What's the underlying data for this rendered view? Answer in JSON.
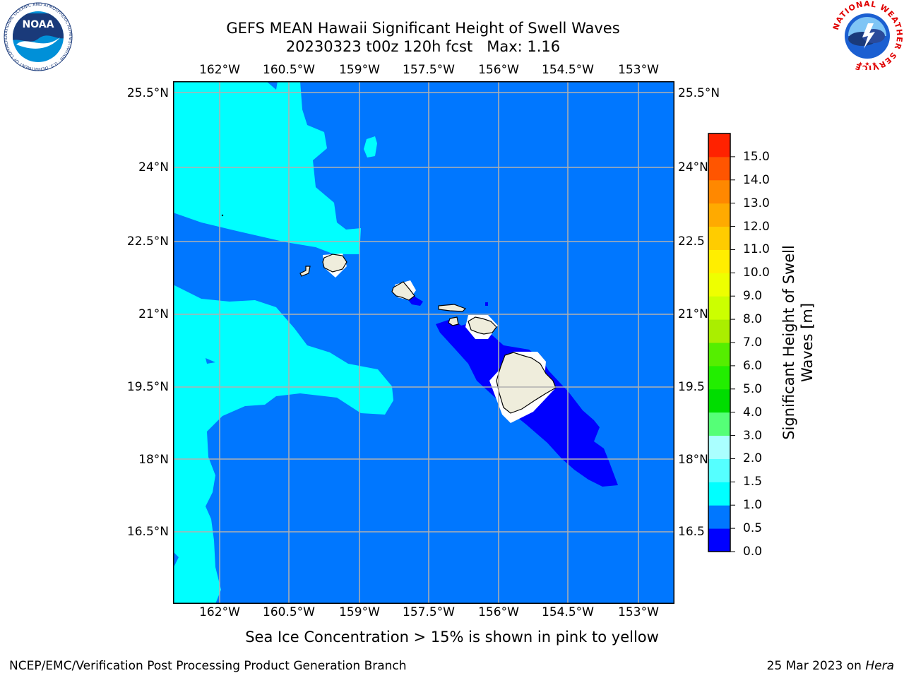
{
  "title": {
    "line1": "GEFS MEAN Hawaii Significant Height of Swell Waves",
    "line2": "20230323 t00z 120h fcst   Max: 1.16"
  },
  "map": {
    "lon_ticks": [
      "162°W",
      "160.5°W",
      "159°W",
      "157.5°W",
      "156°W",
      "154.5°W",
      "153°W"
    ],
    "lat_ticks": [
      "25.5°N",
      "24°N",
      "22.5°N",
      "21°N",
      "19.5°N",
      "18°N",
      "16.5°N"
    ],
    "right_lat_ticks": [
      "25.5°N",
      "24°N",
      "22.5",
      "21°N",
      "19.5",
      "18°N",
      "16.5"
    ],
    "colors": {
      "band_0_0_5": "#0000ff",
      "band_0_5_1_0": "#0077ff",
      "band_1_0_1_5": "#00ffff",
      "land": "#efeddc",
      "grid": "#b0b0b0"
    }
  },
  "colorbar": {
    "label": "Significant Height of Swell Waves [m]",
    "label_line1": "Significant Height of Swell",
    "label_line2": "Waves [m]",
    "ticks": [
      "0.0",
      "0.5",
      "1.0",
      "1.5",
      "2.0",
      "3.0",
      "4.0",
      "5.0",
      "6.0",
      "7.0",
      "8.0",
      "9.0",
      "10.0",
      "11.0",
      "12.0",
      "13.0",
      "14.0",
      "15.0"
    ],
    "colors": [
      "#0000ff",
      "#0077ff",
      "#00ffff",
      "#55ffff",
      "#aaffff",
      "#55ff77",
      "#00dd00",
      "#22ee00",
      "#55ee00",
      "#aaee00",
      "#ccff00",
      "#eeff00",
      "#ffee00",
      "#ffcc00",
      "#ffaa00",
      "#ff8800",
      "#ff5500",
      "#ff2200"
    ]
  },
  "logos": {
    "noaa_text": "NOAA",
    "noaa_ring": "NATIONAL OCEANIC AND ATMOSPHERIC ADMINISTRATION · U.S. DEPARTMENT OF COMMERCE ·",
    "nws_ring": "NATIONAL WEATHER SERVICE"
  },
  "footnote": "Sea Ice Concentration > 15% is shown in pink to yellow",
  "footer": {
    "branch": "NCEP/EMC/Verification Post Processing Product Generation Branch",
    "date_prefix": "25 Mar 2023 on ",
    "machine": "Hera"
  }
}
